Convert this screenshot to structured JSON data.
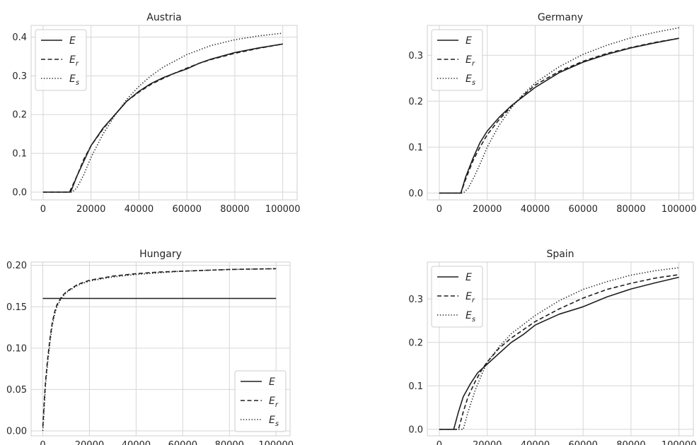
{
  "chart_data": [
    {
      "type": "line",
      "title": "Austria",
      "xlim": [
        -5000,
        106000
      ],
      "ylim": [
        -0.02,
        0.43
      ],
      "xticks": [
        0,
        20000,
        40000,
        60000,
        80000,
        100000
      ],
      "yticks": [
        0.0,
        0.1,
        0.2,
        0.3,
        0.4
      ],
      "ytick_labels": [
        "0.0",
        "0.1",
        "0.2",
        "0.3",
        "0.4"
      ],
      "grid": true,
      "legend_loc": "upper left",
      "series": [
        {
          "name": "E",
          "style": "solid",
          "x": [
            0,
            11500,
            14000,
            17000,
            20000,
            25000,
            30000,
            35000,
            40000,
            45000,
            50000,
            55000,
            60000,
            65000,
            70000,
            80000,
            90000,
            100000
          ],
          "y": [
            0,
            0,
            0.04,
            0.08,
            0.12,
            0.165,
            0.2,
            0.235,
            0.26,
            0.28,
            0.295,
            0.307,
            0.318,
            0.332,
            0.343,
            0.36,
            0.372,
            0.382
          ]
        },
        {
          "name": "E_r",
          "style": "dashed",
          "x": [
            0,
            11000,
            14000,
            17000,
            20000,
            25000,
            30000,
            35000,
            40000,
            45000,
            50000,
            55000,
            60000,
            65000,
            70000,
            80000,
            90000,
            100000
          ],
          "y": [
            0,
            0,
            0.04,
            0.085,
            0.12,
            0.163,
            0.2,
            0.235,
            0.258,
            0.278,
            0.293,
            0.307,
            0.32,
            0.332,
            0.342,
            0.358,
            0.371,
            0.382
          ]
        },
        {
          "name": "E_s",
          "style": "dotted",
          "x": [
            0,
            12000,
            14000,
            17000,
            20000,
            25000,
            30000,
            35000,
            40000,
            45000,
            50000,
            60000,
            70000,
            80000,
            90000,
            100000
          ],
          "y": [
            0,
            0,
            0.01,
            0.045,
            0.09,
            0.15,
            0.198,
            0.24,
            0.273,
            0.3,
            0.322,
            0.355,
            0.378,
            0.393,
            0.403,
            0.41
          ]
        }
      ]
    },
    {
      "type": "line",
      "title": "Germany",
      "xlim": [
        -5000,
        106000
      ],
      "ylim": [
        -0.015,
        0.365
      ],
      "xticks": [
        0,
        20000,
        40000,
        60000,
        80000,
        100000
      ],
      "yticks": [
        0.0,
        0.1,
        0.2,
        0.3
      ],
      "ytick_labels": [
        "0.0",
        "0.1",
        "0.2",
        "0.3"
      ],
      "grid": true,
      "legend_loc": "upper left",
      "series": [
        {
          "name": "E",
          "style": "solid",
          "x": [
            0,
            9000,
            11000,
            14000,
            17000,
            20000,
            25000,
            30000,
            35000,
            40000,
            50000,
            60000,
            70000,
            80000,
            90000,
            100000
          ],
          "y": [
            0,
            0,
            0.035,
            0.075,
            0.11,
            0.135,
            0.165,
            0.19,
            0.21,
            0.23,
            0.262,
            0.285,
            0.302,
            0.316,
            0.327,
            0.337
          ]
        },
        {
          "name": "E_r",
          "style": "dashed",
          "x": [
            0,
            9000,
            11000,
            14000,
            17000,
            20000,
            25000,
            30000,
            35000,
            40000,
            50000,
            60000,
            70000,
            80000,
            90000,
            100000
          ],
          "y": [
            0,
            0,
            0.03,
            0.07,
            0.1,
            0.127,
            0.16,
            0.188,
            0.213,
            0.235,
            0.265,
            0.287,
            0.304,
            0.317,
            0.328,
            0.337
          ]
        },
        {
          "name": "E_s",
          "style": "dotted",
          "x": [
            0,
            10000,
            12000,
            15000,
            18000,
            20000,
            25000,
            30000,
            35000,
            40000,
            50000,
            60000,
            70000,
            80000,
            90000,
            100000
          ],
          "y": [
            0,
            0,
            0.01,
            0.04,
            0.075,
            0.1,
            0.148,
            0.185,
            0.215,
            0.24,
            0.275,
            0.302,
            0.322,
            0.338,
            0.35,
            0.36
          ]
        }
      ]
    },
    {
      "type": "line",
      "title": "Hungary",
      "xlim": [
        -5000,
        106000
      ],
      "ylim": [
        -0.006,
        0.204
      ],
      "xticks": [
        0,
        20000,
        40000,
        60000,
        80000,
        100000
      ],
      "yticks": [
        0.0,
        0.05,
        0.1,
        0.15,
        0.2
      ],
      "ytick_labels": [
        "0.00",
        "0.05",
        "0.10",
        "0.15",
        "0.20"
      ],
      "grid": true,
      "legend_loc": "lower right",
      "series": [
        {
          "name": "E",
          "style": "solid",
          "x": [
            0,
            100000
          ],
          "y": [
            0.16,
            0.16
          ]
        },
        {
          "name": "E_r",
          "style": "dashed",
          "x": [
            0,
            300,
            700,
            1200,
            2000,
            3000,
            4000,
            5000,
            6000,
            8000,
            10000,
            15000,
            20000,
            30000,
            40000,
            50000,
            60000,
            80000,
            100000
          ],
          "y": [
            0.005,
            0.02,
            0.04,
            0.06,
            0.085,
            0.11,
            0.13,
            0.143,
            0.152,
            0.162,
            0.168,
            0.177,
            0.182,
            0.187,
            0.19,
            0.192,
            0.193,
            0.195,
            0.196
          ]
        },
        {
          "name": "E_s",
          "style": "dotted",
          "x": [
            0,
            300,
            700,
            1200,
            2000,
            3000,
            4000,
            5000,
            6000,
            8000,
            10000,
            15000,
            20000,
            30000,
            40000,
            50000,
            60000,
            80000,
            100000
          ],
          "y": [
            0.0,
            0.012,
            0.032,
            0.055,
            0.08,
            0.105,
            0.126,
            0.14,
            0.15,
            0.16,
            0.167,
            0.176,
            0.181,
            0.186,
            0.189,
            0.191,
            0.193,
            0.195,
            0.196
          ]
        }
      ]
    },
    {
      "type": "line",
      "title": "Spain",
      "xlim": [
        -5000,
        106000
      ],
      "ylim": [
        -0.015,
        0.385
      ],
      "xticks": [
        0,
        20000,
        40000,
        60000,
        80000,
        100000
      ],
      "yticks": [
        0.0,
        0.1,
        0.2,
        0.3
      ],
      "ytick_labels": [
        "0.0",
        "0.1",
        "0.2",
        "0.3"
      ],
      "grid": true,
      "legend_loc": "upper left",
      "series": [
        {
          "name": "E",
          "style": "solid",
          "x": [
            0,
            6000,
            8000,
            10000,
            13000,
            16000,
            20000,
            25000,
            30000,
            35000,
            40000,
            50000,
            60000,
            70000,
            80000,
            90000,
            100000
          ],
          "y": [
            0,
            0,
            0.04,
            0.075,
            0.105,
            0.13,
            0.15,
            0.175,
            0.2,
            0.218,
            0.24,
            0.265,
            0.282,
            0.305,
            0.323,
            0.337,
            0.35
          ]
        },
        {
          "name": "E_r",
          "style": "dashed",
          "x": [
            0,
            8000,
            10000,
            12000,
            15000,
            18000,
            20000,
            25000,
            30000,
            40000,
            50000,
            60000,
            70000,
            80000,
            90000,
            100000
          ],
          "y": [
            0,
            0,
            0.04,
            0.075,
            0.11,
            0.14,
            0.155,
            0.187,
            0.21,
            0.248,
            0.277,
            0.302,
            0.322,
            0.336,
            0.348,
            0.356
          ]
        },
        {
          "name": "E_s",
          "style": "dotted",
          "x": [
            0,
            10000,
            12000,
            15000,
            18000,
            20000,
            25000,
            30000,
            40000,
            50000,
            60000,
            70000,
            80000,
            90000,
            100000
          ],
          "y": [
            0,
            0,
            0.04,
            0.09,
            0.13,
            0.155,
            0.19,
            0.22,
            0.262,
            0.296,
            0.322,
            0.34,
            0.355,
            0.365,
            0.372
          ]
        }
      ]
    }
  ]
}
